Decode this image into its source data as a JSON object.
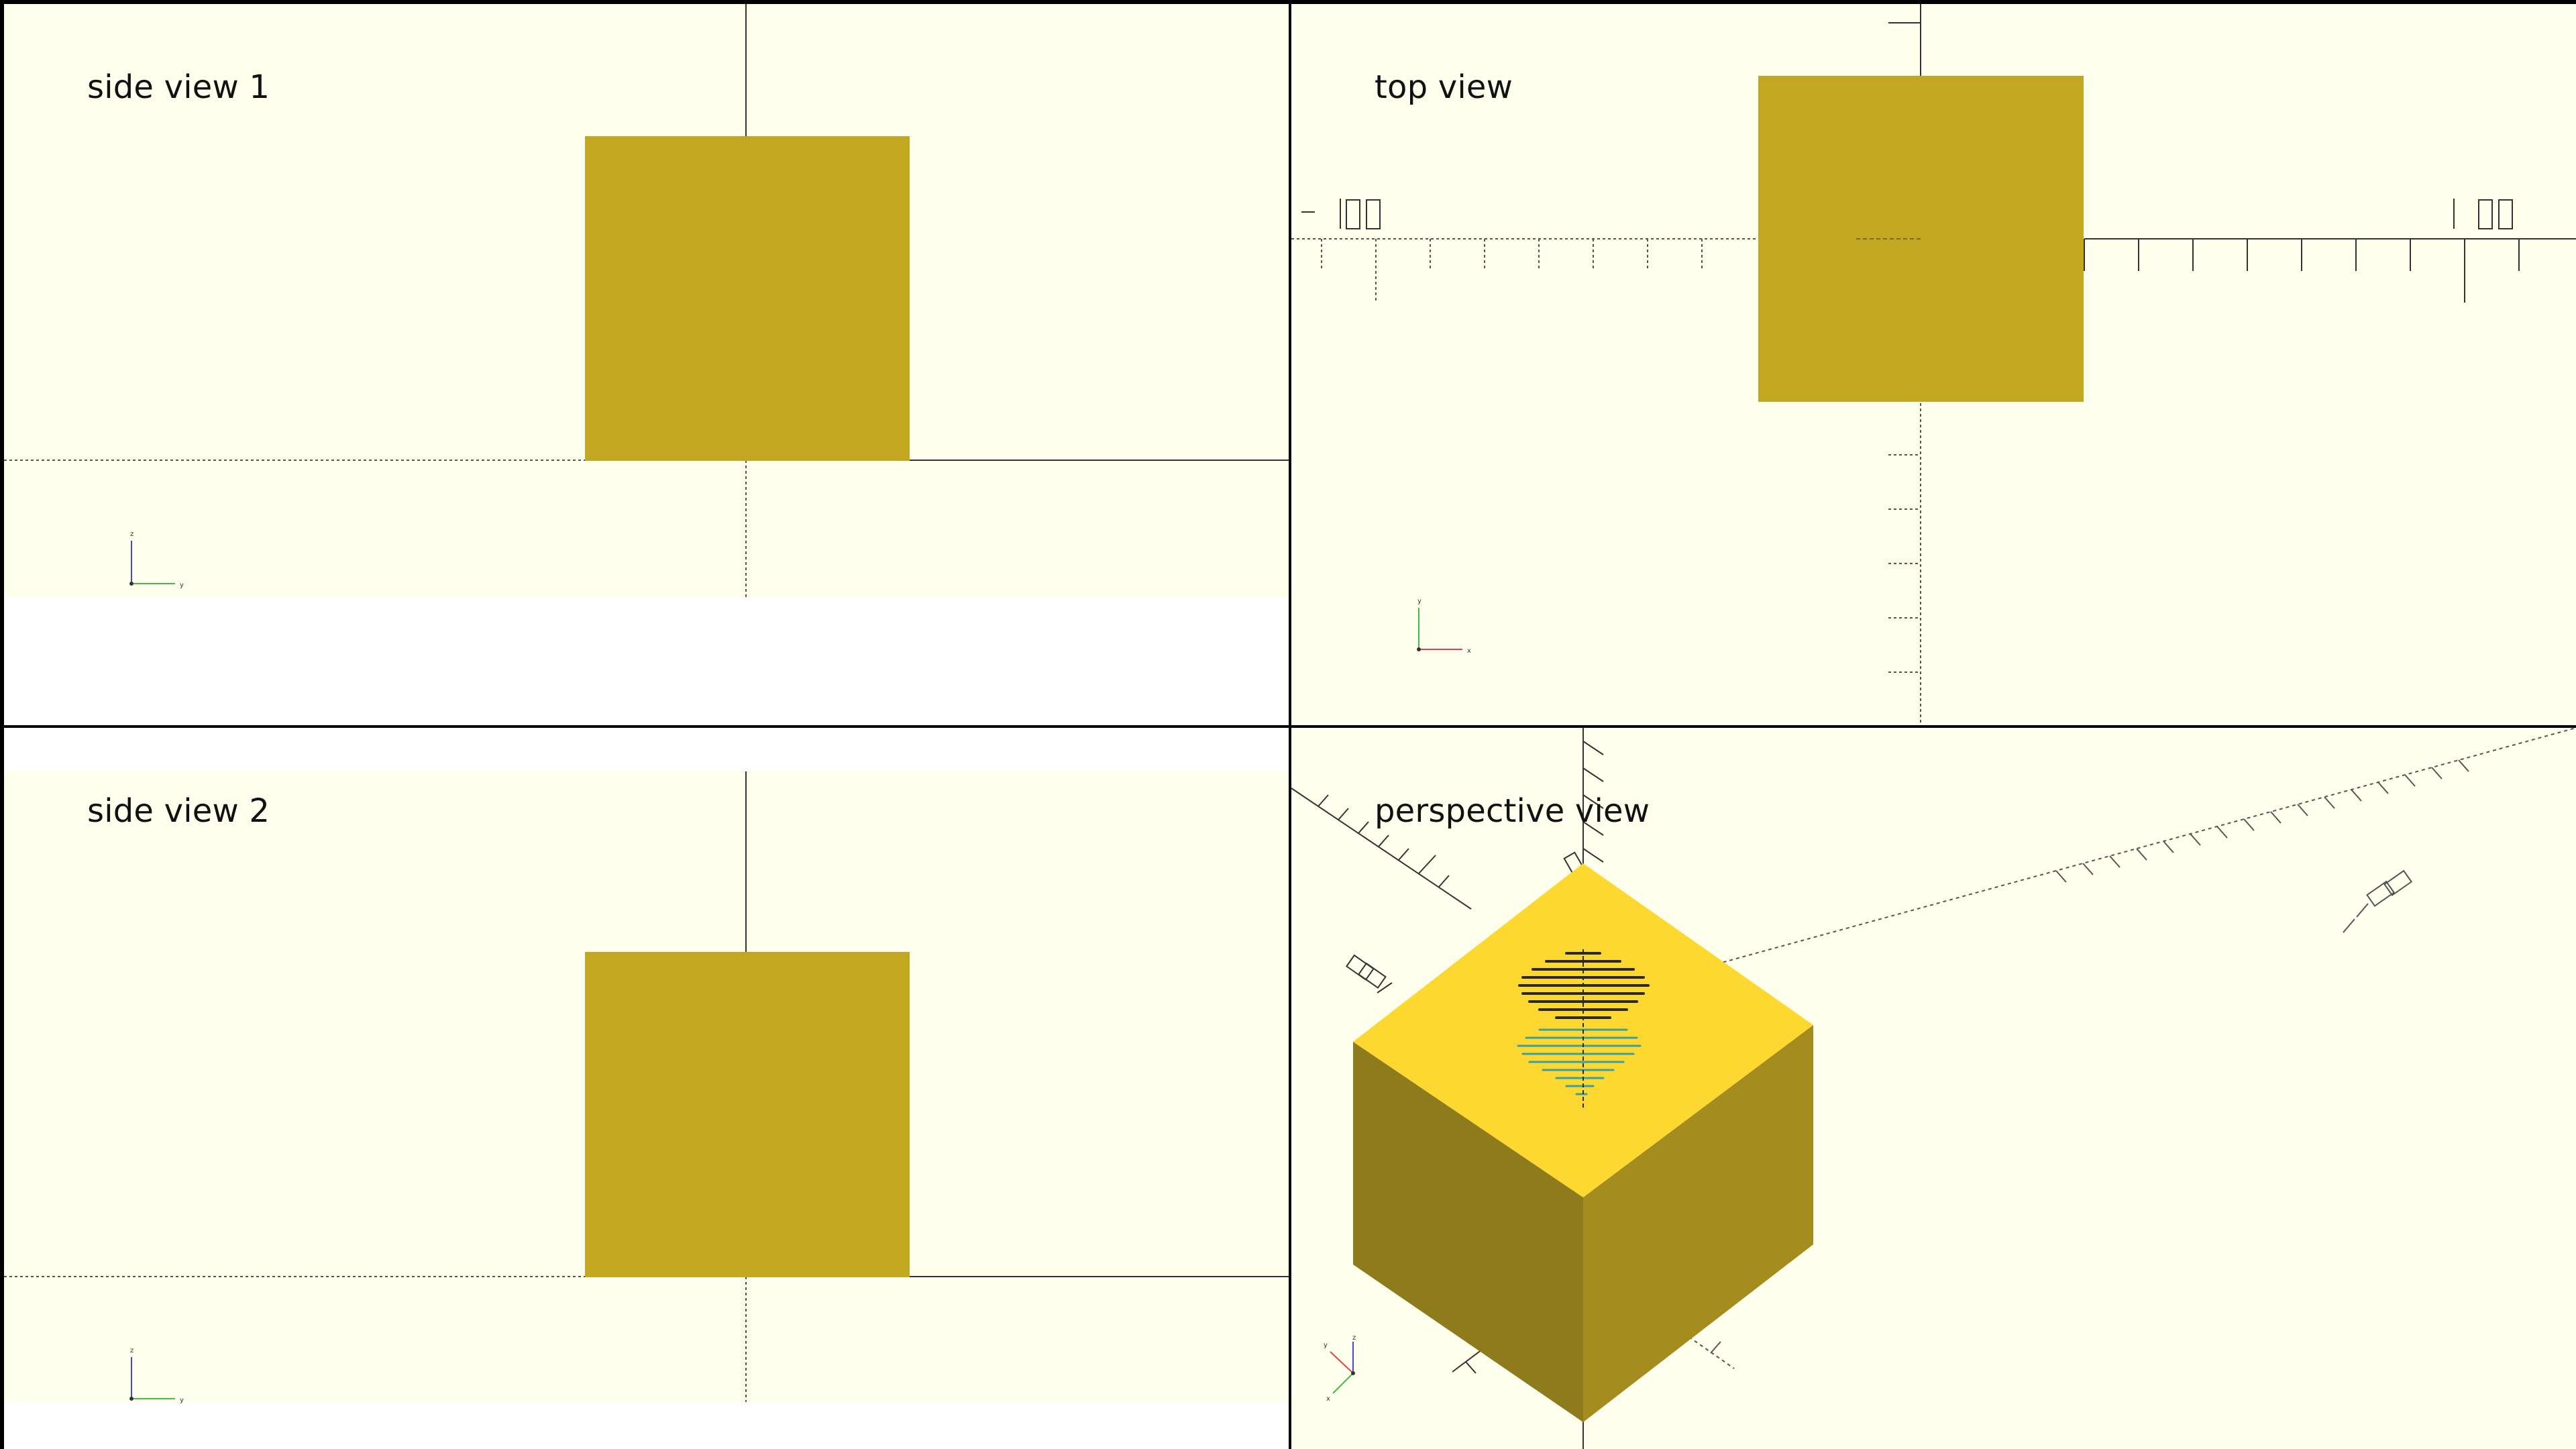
{
  "views": [
    {
      "id": "side1",
      "label": "side view 1"
    },
    {
      "id": "top",
      "label": "top view"
    },
    {
      "id": "side2",
      "label": "side view 2"
    },
    {
      "id": "perspective",
      "label": "perspective view"
    }
  ],
  "axis_letters": {
    "side1": [
      "z",
      "y"
    ],
    "top": [
      "y",
      "x"
    ],
    "side2": [
      "z",
      "y"
    ],
    "perspective": [
      "z",
      "y",
      "x"
    ]
  },
  "colors": {
    "background": "#ffffee",
    "cube_flat": "#c1a722",
    "cube_top": "#fcd830",
    "cube_left": "#8e7b1b",
    "cube_right": "#a48c1f",
    "axis_line": "#333333",
    "axis_x": "#e04444",
    "axis_y": "#44bb44",
    "axis_z": "#4444ee"
  }
}
